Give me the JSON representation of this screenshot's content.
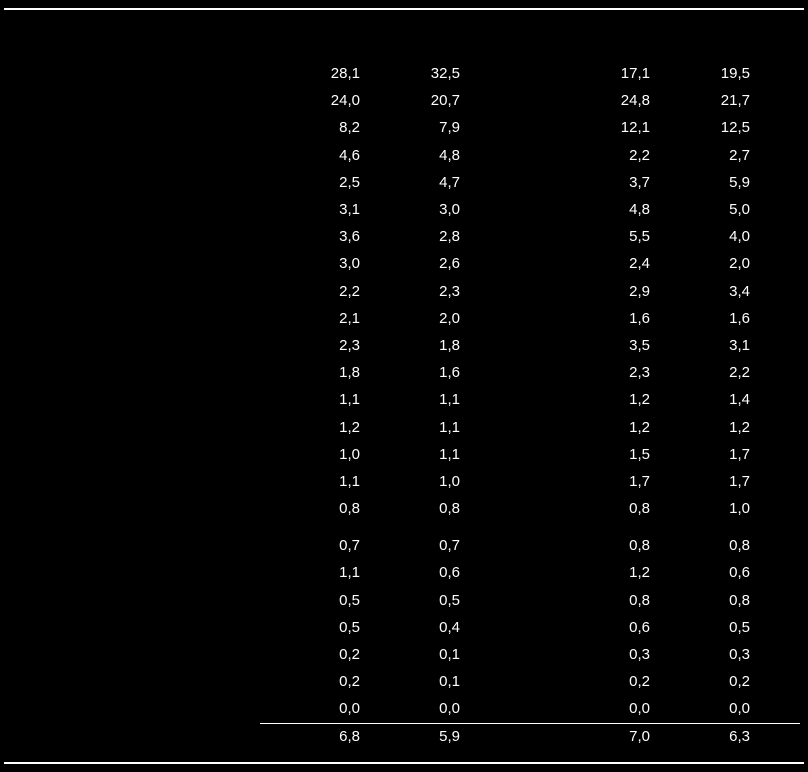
{
  "table": {
    "type": "table",
    "background_color": "#000000",
    "text_color": "#ffffff",
    "fontsize": 15,
    "rows": [
      {
        "a": "28,1",
        "b": "32,5",
        "c": "17,1",
        "d": "19,5"
      },
      {
        "a": "24,0",
        "b": "20,7",
        "c": "24,8",
        "d": "21,7"
      },
      {
        "a": "8,2",
        "b": "7,9",
        "c": "12,1",
        "d": "12,5"
      },
      {
        "a": "4,6",
        "b": "4,8",
        "c": "2,2",
        "d": "2,7"
      },
      {
        "a": "2,5",
        "b": "4,7",
        "c": "3,7",
        "d": "5,9"
      },
      {
        "a": "3,1",
        "b": "3,0",
        "c": "4,8",
        "d": "5,0"
      },
      {
        "a": "3,6",
        "b": "2,8",
        "c": "5,5",
        "d": "4,0"
      },
      {
        "a": "3,0",
        "b": "2,6",
        "c": "2,4",
        "d": "2,0"
      },
      {
        "a": "2,2",
        "b": "2,3",
        "c": "2,9",
        "d": "3,4"
      },
      {
        "a": "2,1",
        "b": "2,0",
        "c": "1,6",
        "d": "1,6"
      },
      {
        "a": "2,3",
        "b": "1,8",
        "c": "3,5",
        "d": "3,1"
      },
      {
        "a": "1,8",
        "b": "1,6",
        "c": "2,3",
        "d": "2,2"
      },
      {
        "a": "1,1",
        "b": "1,1",
        "c": "1,2",
        "d": "1,4"
      },
      {
        "a": "1,2",
        "b": "1,1",
        "c": "1,2",
        "d": "1,2"
      },
      {
        "a": "1,0",
        "b": "1,1",
        "c": "1,5",
        "d": "1,7"
      },
      {
        "a": "1,1",
        "b": "1,0",
        "c": "1,7",
        "d": "1,7"
      },
      {
        "a": "0,8",
        "b": "0,8",
        "c": "0,8",
        "d": "1,0"
      },
      {
        "a": "0,7",
        "b": "0,7",
        "c": "0,8",
        "d": "0,8",
        "gap_before": true
      },
      {
        "a": "1,1",
        "b": "0,6",
        "c": "1,2",
        "d": "0,6"
      },
      {
        "a": "0,5",
        "b": "0,5",
        "c": "0,8",
        "d": "0,8"
      },
      {
        "a": "0,5",
        "b": "0,4",
        "c": "0,6",
        "d": "0,5"
      },
      {
        "a": "0,2",
        "b": "0,1",
        "c": "0,3",
        "d": "0,3"
      },
      {
        "a": "0,2",
        "b": "0,1",
        "c": "0,2",
        "d": "0,2"
      },
      {
        "a": "0,0",
        "b": "0,0",
        "c": "0,0",
        "d": "0,0"
      },
      {
        "a": "6,8",
        "b": "5,9",
        "c": "7,0",
        "d": "6,3",
        "rule_above": true
      }
    ]
  }
}
